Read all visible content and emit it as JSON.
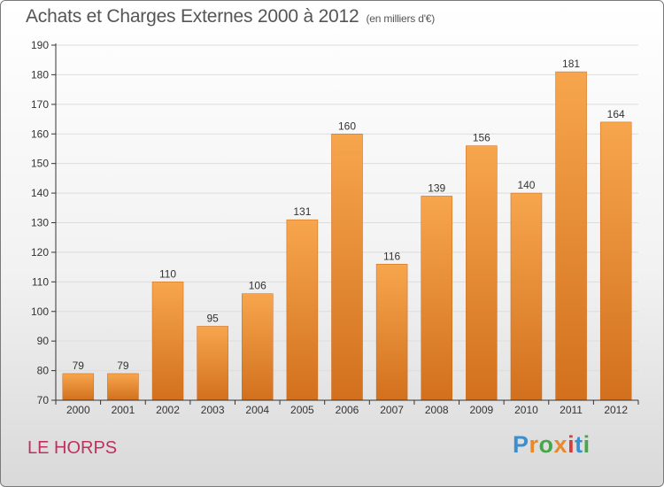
{
  "title": "Achats et Charges Externes 2000 à 2012",
  "subtitle": "(en milliers d'€)",
  "commune": "LE HORPS",
  "brand": {
    "text": "Proxiti",
    "colors": [
      "#3a8fd0",
      "#e8892b",
      "#44a84a",
      "#e8892b",
      "#d93b3b",
      "#3a8fd0",
      "#44a84a"
    ]
  },
  "colors": {
    "bar_top": "#f7a64d",
    "bar_bottom": "#d2701d",
    "axis": "#333333",
    "grid": "#dddddd",
    "commune": "#c0305e"
  },
  "chart_data": {
    "type": "bar",
    "categories": [
      "2000",
      "2001",
      "2002",
      "2003",
      "2004",
      "2005",
      "2006",
      "2007",
      "2008",
      "2009",
      "2010",
      "2011",
      "2012"
    ],
    "values": [
      79,
      79,
      110,
      95,
      106,
      131,
      160,
      116,
      139,
      156,
      140,
      181,
      164
    ],
    "ylim": [
      70,
      190
    ],
    "yticks": [
      70,
      80,
      90,
      100,
      110,
      120,
      130,
      140,
      150,
      160,
      170,
      180,
      190
    ],
    "grid": true,
    "data_labels": true
  }
}
